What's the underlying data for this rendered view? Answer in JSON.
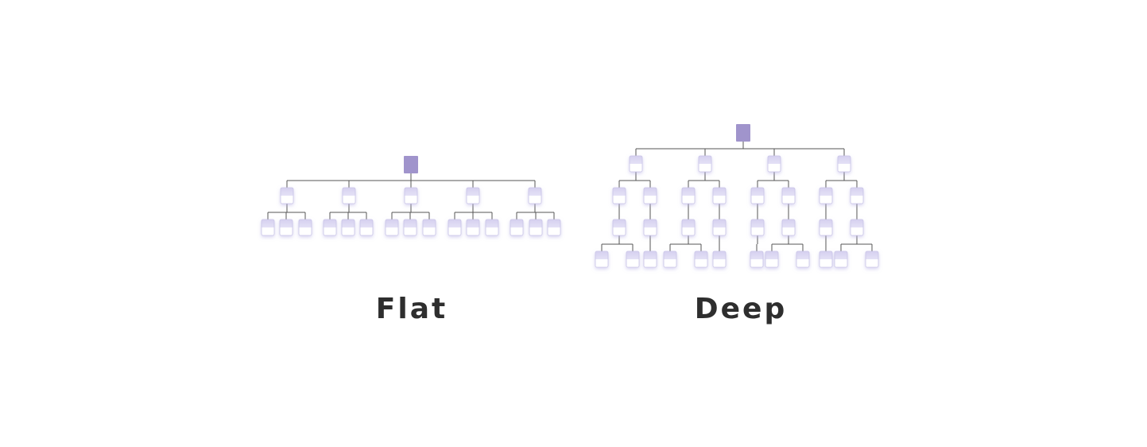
{
  "labels": {
    "flat": "Flat",
    "deep": "Deep"
  },
  "colors": {
    "root": "#a094cc",
    "node_top": "#dcd8f2",
    "node_bottom": "#ffffff",
    "node_border": "#c9c4e6",
    "line": "#555555",
    "label": "#2e2e2e"
  },
  "trees": {
    "flat": {
      "name": "flat-tree",
      "levels": 3,
      "root_children": 5,
      "children_per_node": [
        3,
        3,
        3,
        3,
        3
      ]
    },
    "deep": {
      "name": "deep-tree",
      "levels": 5,
      "root_children": 4,
      "children_per_node": [
        2,
        2,
        2,
        2
      ]
    }
  }
}
